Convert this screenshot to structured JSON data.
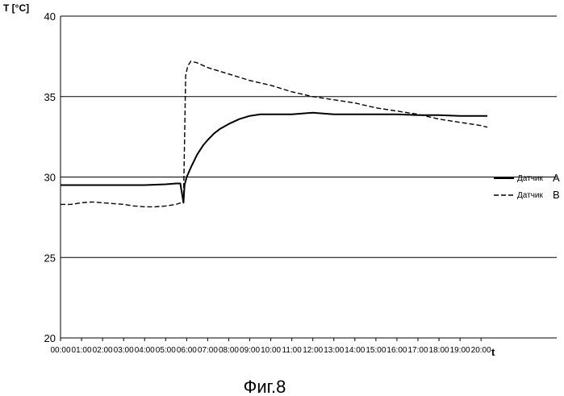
{
  "chart_data": {
    "type": "line",
    "ylabel": "T [°C]",
    "xlabel": "t",
    "ylim": [
      20,
      40
    ],
    "yticks": [
      20,
      25,
      30,
      35,
      40
    ],
    "x_ticks": [
      "00:00",
      "01:00",
      "02:00",
      "03:00",
      "04:00",
      "05:00",
      "06:00",
      "07:00",
      "08:00",
      "09:00",
      "10:00",
      "11:00",
      "12:00",
      "13:00",
      "14:00",
      "15:00",
      "16:00",
      "17:00",
      "18:00",
      "19:00",
      "20:00"
    ],
    "grid": "horizontal",
    "legend_position": "right",
    "series": [
      {
        "name": "Датчик",
        "letter": "A",
        "style": "solid",
        "x": [
          0.0,
          1.0,
          2.0,
          3.0,
          4.0,
          5.0,
          5.5,
          5.7,
          5.85,
          5.9,
          6.0,
          6.2,
          6.5,
          6.8,
          7.0,
          7.3,
          7.6,
          8.0,
          8.5,
          9.0,
          9.5,
          10.0,
          10.5,
          11.0,
          11.5,
          12.0,
          12.5,
          13.0,
          13.5,
          14.0,
          15.0,
          16.0,
          17.0,
          18.0,
          19.0,
          20.0,
          20.3
        ],
        "y": [
          29.5,
          29.5,
          29.5,
          29.5,
          29.5,
          29.55,
          29.6,
          29.6,
          28.4,
          29.5,
          30.0,
          30.6,
          31.4,
          32.0,
          32.3,
          32.7,
          33.0,
          33.3,
          33.6,
          33.8,
          33.9,
          33.9,
          33.9,
          33.9,
          33.95,
          34.0,
          33.95,
          33.9,
          33.9,
          33.9,
          33.9,
          33.9,
          33.85,
          33.85,
          33.8,
          33.8,
          33.8
        ]
      },
      {
        "name": "Датчик",
        "letter": "B",
        "style": "dashed",
        "x": [
          0.0,
          0.5,
          1.0,
          1.5,
          2.0,
          2.5,
          3.0,
          3.5,
          4.0,
          4.5,
          5.0,
          5.5,
          5.85,
          5.95,
          6.05,
          6.2,
          6.5,
          7.0,
          8.0,
          9.0,
          10.0,
          11.0,
          12.0,
          13.0,
          14.0,
          15.0,
          16.0,
          17.0,
          18.0,
          19.0,
          20.0,
          20.3
        ],
        "y": [
          28.3,
          28.3,
          28.4,
          28.45,
          28.4,
          28.35,
          28.3,
          28.2,
          28.15,
          28.15,
          28.2,
          28.3,
          28.45,
          36.3,
          36.9,
          37.2,
          37.1,
          36.8,
          36.4,
          36.0,
          35.7,
          35.3,
          35.0,
          34.8,
          34.6,
          34.3,
          34.1,
          33.9,
          33.6,
          33.4,
          33.2,
          33.1
        ]
      }
    ],
    "caption": "Фиг.8"
  }
}
